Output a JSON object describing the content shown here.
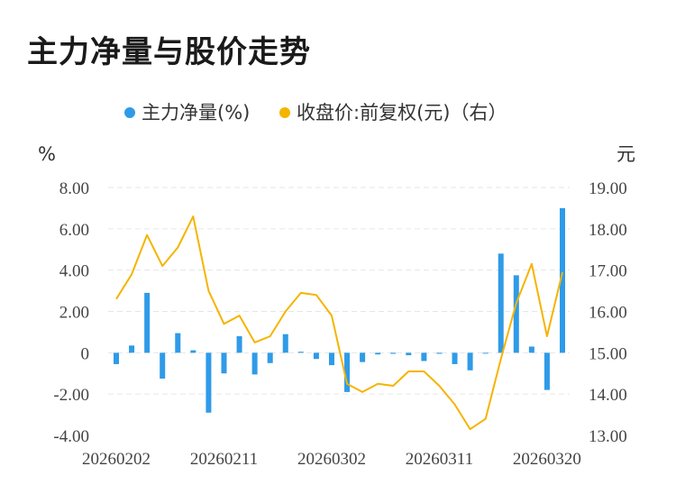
{
  "title": "主力净量与股价走势",
  "chart_data": {
    "type": "bar",
    "legend": [
      {
        "name": "主力净量(%)",
        "color": "#2f9be8"
      },
      {
        "name": "收盘价:前复权(元)（右）",
        "color": "#f5b400"
      }
    ],
    "left_unit": "%",
    "right_unit": "元",
    "yticks_left": [
      "8.00",
      "6.00",
      "4.00",
      "2.00",
      "0",
      "-2.00",
      "-4.00"
    ],
    "yticks_right": [
      "19.00",
      "18.00",
      "17.00",
      "16.00",
      "15.00",
      "14.00",
      "13.00"
    ],
    "ylim_left": [
      -4,
      8
    ],
    "ylim_right": [
      13,
      19
    ],
    "x_tick_labels": [
      "20260202",
      "20260211",
      "20260302",
      "20260311",
      "20260320"
    ],
    "x_tick_index": [
      0,
      7,
      14,
      21,
      28
    ],
    "series": [
      {
        "name": "主力净量(%)",
        "type": "bar",
        "color": "#2f9be8",
        "values": [
          -0.55,
          0.35,
          2.9,
          -1.25,
          0.95,
          0.12,
          -2.9,
          -1.0,
          0.8,
          -1.05,
          -0.5,
          0.9,
          0.05,
          -0.3,
          -0.6,
          -1.9,
          -0.45,
          -0.08,
          -0.05,
          -0.12,
          -0.4,
          -0.05,
          -0.55,
          -0.85,
          -0.03,
          4.8,
          3.75,
          0.3,
          -1.8,
          7.0
        ]
      },
      {
        "name": "收盘价:前复权(元)（右）",
        "type": "line",
        "color": "#f5b400",
        "values": [
          16.3,
          16.9,
          17.85,
          17.1,
          17.55,
          18.3,
          16.5,
          15.7,
          15.9,
          15.25,
          15.4,
          16.0,
          16.45,
          16.4,
          15.9,
          14.25,
          14.05,
          14.25,
          14.2,
          14.55,
          14.55,
          14.2,
          13.75,
          13.15,
          13.4,
          14.85,
          16.2,
          17.15,
          15.4,
          16.95
        ]
      }
    ]
  }
}
